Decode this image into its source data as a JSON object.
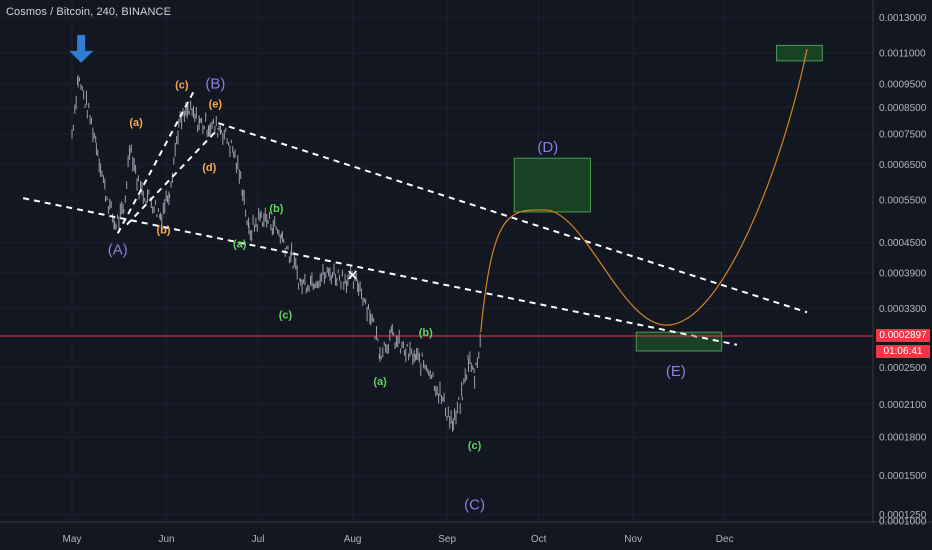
{
  "header": {
    "title": "Cosmos / Bitcoin, 240, BINANCE"
  },
  "colors": {
    "background": "#131722",
    "candles": "#9aa0ab",
    "trendlines": "#ffffff",
    "projection_curve": "#d4841f",
    "target_box_fill": "#1b4a26",
    "target_box_border": "#4a9a57",
    "current_price_line": "#f23645",
    "wave_label_purple": "#8d7fe0",
    "wave_label_orange": "#f6a94e",
    "wave_label_green": "#5fd45f",
    "arrow_blue": "#2f7fd6"
  },
  "badges": {
    "current_price": "0.0002897",
    "countdown": "01:06:41"
  },
  "chart_data": {
    "type": "candlestick",
    "symbol": "Cosmos / Bitcoin",
    "interval": "240",
    "exchange": "BINANCE",
    "y_scale": "log",
    "ylim": [
      0.0001,
      0.0013
    ],
    "y_ticks": [
      "0.0013000",
      "0.0011000",
      "0.0009500",
      "0.0008500",
      "0.0007500",
      "0.0006500",
      "0.0005500",
      "0.0004500",
      "0.0003900",
      "0.0003300",
      "0.0002500",
      "0.0002100",
      "0.0001800",
      "0.0001500",
      "0.0001250",
      "0.0001000"
    ],
    "x_ticks": [
      "May",
      "Jun",
      "Jul",
      "Aug",
      "Sep",
      "Oct",
      "Nov",
      "Dec"
    ],
    "last_price": 0.0002897,
    "wave_labels": [
      {
        "text": "(A)",
        "color": "purple",
        "x": "May 16",
        "y": 0.000425
      },
      {
        "text": "(B)",
        "color": "purple",
        "x": "Jun 17",
        "y": 0.00093
      },
      {
        "text": "(C)",
        "color": "purple",
        "x": "Sep 10",
        "y": 0.000128
      },
      {
        "text": "(D)",
        "color": "purple",
        "x": "Oct 4",
        "y": 0.00069
      },
      {
        "text": "(E)",
        "color": "purple",
        "x": "Nov 15",
        "y": 0.00024
      },
      {
        "text": "(a)",
        "color": "orange",
        "x": "May 22",
        "y": 0.00078
      },
      {
        "text": "(b)",
        "color": "orange",
        "x": "May 31",
        "y": 0.00047
      },
      {
        "text": "(c)",
        "color": "orange",
        "x": "Jun 6",
        "y": 0.00093
      },
      {
        "text": "(d)",
        "color": "orange",
        "x": "Jun 15",
        "y": 0.00063
      },
      {
        "text": "(e)",
        "color": "orange",
        "x": "Jun 17",
        "y": 0.00085
      },
      {
        "text": "(a)",
        "color": "green",
        "x": "Jun 25",
        "y": 0.00044
      },
      {
        "text": "(b)",
        "color": "green",
        "x": "Jul 7",
        "y": 0.00052
      },
      {
        "text": "(c)",
        "color": "green",
        "x": "Jul 10",
        "y": 0.000315
      },
      {
        "text": "(a)",
        "color": "green",
        "x": "Aug 10",
        "y": 0.00023
      },
      {
        "text": "(b)",
        "color": "green",
        "x": "Aug 25",
        "y": 0.00029
      },
      {
        "text": "(c)",
        "color": "green",
        "x": "Sep 10",
        "y": 0.00017
      }
    ],
    "target_zones": [
      {
        "label": "(D) zone",
        "x_from": "Sep 23",
        "x_to": "Oct 18",
        "y_from": 0.00052,
        "y_to": 0.00067
      },
      {
        "label": "(E) zone",
        "x_from": "Nov 2",
        "x_to": "Nov 30",
        "y_from": 0.00027,
        "y_to": 0.000295
      },
      {
        "label": "final target",
        "x_from": "Dec 18",
        "x_to": "Jan 2",
        "y_from": 0.00106,
        "y_to": 0.00114
      }
    ],
    "trendlines": [
      {
        "from": {
          "x": "Apr 15",
          "y": 0.000555
        },
        "to": {
          "x": "Dec 5",
          "y": 0.000278
        }
      },
      {
        "from": {
          "x": "Jun 18",
          "y": 0.00079
        },
        "to": {
          "x": "Dec 28",
          "y": 0.000324
        }
      },
      {
        "from": {
          "x": "May 16",
          "y": 0.00047
        },
        "to": {
          "x": "Jun 10",
          "y": 0.00092
        }
      },
      {
        "from": {
          "x": "May 19",
          "y": 0.00049
        },
        "to": {
          "x": "Jun 18",
          "y": 0.00077
        }
      }
    ],
    "projection_path": [
      {
        "x": "Sep 12",
        "y": 0.000295
      },
      {
        "x": "Oct 3",
        "y": 0.000525
      },
      {
        "x": "Nov 12",
        "y": 0.000305
      },
      {
        "x": "Dec 28",
        "y": 0.00112
      }
    ],
    "markers": [
      {
        "type": "arrow-down",
        "x": "May 4",
        "y": 0.00108
      },
      {
        "type": "x",
        "x": "Aug 1",
        "y": 0.000385
      }
    ]
  }
}
